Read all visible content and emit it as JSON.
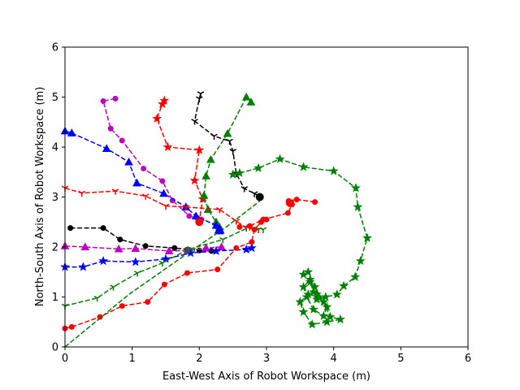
{
  "chart_data": {
    "type": "line",
    "title": "",
    "xlabel": "East-West Axis of Robot Workspace (m)",
    "ylabel": "North-South Axis of Robot Workspace (m)",
    "xlim": [
      0,
      6
    ],
    "ylim": [
      0,
      6
    ],
    "xticks": [
      "0",
      "1",
      "2",
      "3",
      "4",
      "5",
      "6"
    ],
    "yticks": [
      "0",
      "1",
      "2",
      "3",
      "4",
      "5",
      "6"
    ],
    "grid": false,
    "legend": "none",
    "series": [
      {
        "color": "#ff0000",
        "marker": "star",
        "x": [
          1.48,
          1.45,
          1.37,
          1.53,
          2.0,
          1.93,
          2.05,
          2.0
        ],
        "y": [
          4.93,
          4.86,
          4.57,
          4.0,
          3.94,
          3.33,
          2.96,
          2.52
        ]
      },
      {
        "color": "#000000",
        "marker": "tri_down",
        "x": [
          2.02,
          2.0,
          1.93,
          2.22,
          2.45,
          2.5,
          2.55,
          2.67,
          2.82,
          2.9
        ],
        "y": [
          5.07,
          4.97,
          4.52,
          4.22,
          4.12,
          3.92,
          3.47,
          3.17,
          3.07,
          3.01
        ]
      },
      {
        "color": "#008000",
        "marker": "triangle",
        "x": [
          2.77,
          2.7,
          2.42,
          2.17,
          2.1,
          2.07,
          2.13,
          2.25,
          2.3
        ],
        "y": [
          4.9,
          5.0,
          4.27,
          3.75,
          3.42,
          3.03,
          2.75,
          2.5,
          2.4
        ]
      },
      {
        "color": "#bf00bf",
        "marker": "circle",
        "x": [
          0.75,
          0.57,
          0.68,
          0.85,
          1.17,
          1.45,
          1.6,
          1.85,
          1.97,
          2.03
        ],
        "y": [
          4.97,
          4.92,
          4.37,
          4.13,
          3.57,
          3.32,
          2.93,
          2.62,
          2.58,
          2.55
        ]
      },
      {
        "color": "#0000ff",
        "marker": "triangle",
        "x": [
          0.0,
          0.1,
          0.62,
          0.95,
          1.07,
          1.47,
          1.8,
          1.95,
          2.25,
          2.3
        ],
        "y": [
          4.32,
          4.28,
          3.97,
          3.7,
          3.28,
          3.07,
          2.8,
          2.62,
          2.43,
          2.32
        ]
      },
      {
        "color": "#ff0000",
        "marker": "tri_down",
        "x": [
          0.0,
          0.25,
          0.75,
          1.2,
          1.5,
          1.8,
          2.3,
          2.55,
          2.7,
          2.88
        ],
        "y": [
          3.18,
          3.08,
          3.12,
          3.02,
          2.82,
          2.8,
          2.75,
          2.52,
          2.38,
          2.35
        ]
      },
      {
        "color": "#000000",
        "marker": "circle",
        "x": [
          0.08,
          0.57,
          0.82,
          1.2,
          1.63,
          1.83,
          2.0,
          2.18
        ],
        "y": [
          2.38,
          2.38,
          2.15,
          2.02,
          1.98,
          1.95,
          1.93,
          1.92
        ]
      },
      {
        "color": "#bf00bf",
        "marker": "triangle",
        "x": [
          0.0,
          0.3,
          0.8,
          1.05,
          1.55,
          1.83,
          2.1,
          2.33
        ],
        "y": [
          2.02,
          2.0,
          1.96,
          1.97,
          1.92,
          1.93,
          1.98,
          2.0
        ]
      },
      {
        "color": "#0000ff",
        "marker": "star",
        "x": [
          0.0,
          0.27,
          0.57,
          1.05,
          1.5,
          1.87,
          2.25,
          2.7,
          2.78
        ],
        "y": [
          1.6,
          1.6,
          1.72,
          1.7,
          1.76,
          1.88,
          1.92,
          1.95,
          1.98
        ]
      },
      {
        "color": "#ff0000",
        "marker": "circle",
        "x": [
          0.0,
          0.1,
          0.52,
          0.85,
          1.23,
          1.48,
          1.82,
          2.27,
          2.55,
          2.78,
          2.82,
          2.92,
          3.0
        ],
        "y": [
          0.37,
          0.4,
          0.6,
          0.82,
          0.9,
          1.25,
          1.48,
          1.55,
          1.98,
          2.1,
          2.35,
          2.5,
          2.55
        ]
      },
      {
        "color": "#008000",
        "marker": "tri_down",
        "x": [
          0.0,
          0.48,
          0.72,
          1.08,
          1.45,
          1.83,
          2.35,
          2.75,
          2.95
        ],
        "y": [
          0.82,
          0.98,
          1.2,
          1.48,
          1.68,
          1.95,
          2.15,
          2.4,
          2.35
        ]
      },
      {
        "color": "#008000",
        "marker": "none",
        "x": [
          0.0,
          0.95,
          1.8,
          2.4,
          2.9
        ],
        "y": [
          0.0,
          1.05,
          1.85,
          2.4,
          2.92
        ]
      },
      {
        "color": "#ff0000",
        "marker": "circle",
        "x": [
          3.72,
          3.45,
          3.33,
          3.38,
          3.32,
          2.95,
          2.75,
          2.6
        ],
        "y": [
          2.9,
          2.95,
          2.92,
          2.85,
          2.68,
          2.55,
          2.42,
          2.4
        ]
      },
      {
        "color": "#008000",
        "marker": "star",
        "x": [
          2.5,
          2.6,
          2.88,
          3.2,
          3.55,
          4.0,
          4.33,
          4.36,
          4.5,
          4.4,
          4.32,
          4.15,
          4.05,
          3.88,
          3.75,
          3.7,
          3.65,
          3.55,
          3.62,
          3.72,
          3.85,
          3.95,
          4.1,
          3.9,
          3.68,
          3.55,
          3.5,
          3.62,
          3.78,
          3.9,
          3.85,
          3.7,
          3.6,
          3.55,
          3.65,
          3.75
        ],
        "y": [
          3.45,
          3.48,
          3.58,
          3.76,
          3.6,
          3.52,
          3.18,
          2.8,
          2.18,
          1.72,
          1.4,
          1.22,
          1.05,
          1.0,
          0.95,
          1.1,
          1.3,
          1.45,
          1.5,
          1.2,
          0.9,
          0.6,
          0.55,
          0.5,
          0.45,
          0.7,
          0.9,
          1.05,
          1.0,
          0.8,
          0.62,
          0.75,
          1.0,
          1.2,
          1.35,
          1.05
        ]
      }
    ],
    "endpoint_markers": [
      {
        "color": "#ff0000",
        "marker": "circle",
        "x": 2.0,
        "y": 2.5
      },
      {
        "color": "#000000",
        "marker": "circle",
        "x": 2.9,
        "y": 3.0
      },
      {
        "color": "#ff0000",
        "marker": "circle",
        "x": 3.35,
        "y": 2.88
      },
      {
        "color": "#0000ff",
        "marker": "triangle",
        "x": 2.3,
        "y": 2.35
      }
    ]
  }
}
